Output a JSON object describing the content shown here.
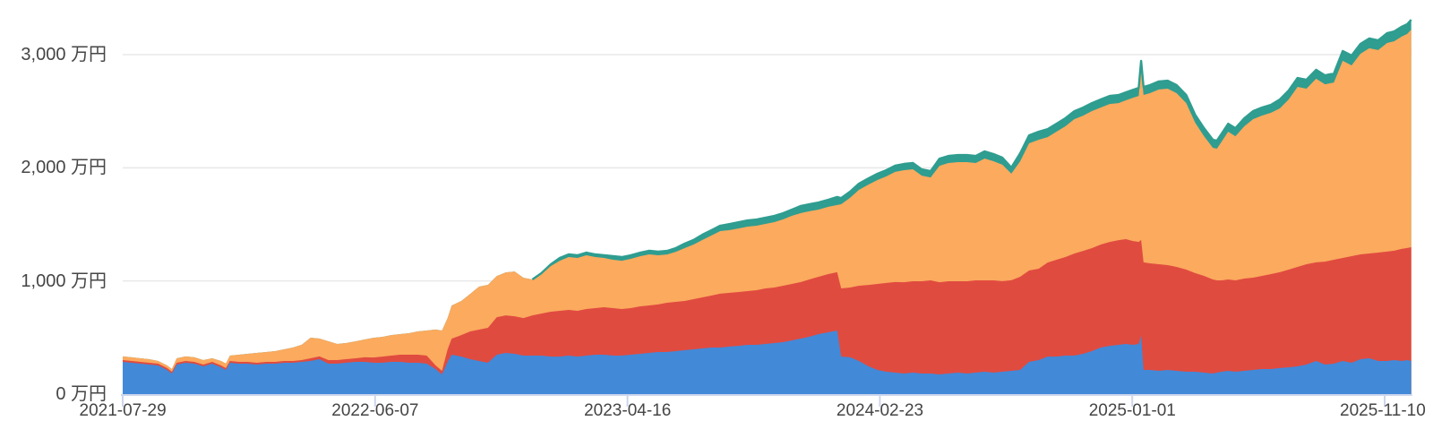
{
  "chart_data": {
    "type": "area",
    "stacked": true,
    "title": "",
    "unit": "万円",
    "x_axis": {
      "start_date": "2021-07-29",
      "ticks": [
        {
          "label": "2021-07-29",
          "day": 0
        },
        {
          "label": "2022-06-07",
          "day": 313
        },
        {
          "label": "2023-04-16",
          "day": 626
        },
        {
          "label": "2024-02-23",
          "day": 939
        },
        {
          "label": "2025-01-01",
          "day": 1252
        },
        {
          "label": "2025-11-10",
          "day": 1565
        }
      ],
      "end_day": 1598
    },
    "y_axis": {
      "ticks": [
        {
          "label": "0 万円",
          "value": 0
        },
        {
          "label": "1,000 万円",
          "value": 1000
        },
        {
          "label": "2,000 万円",
          "value": 2000
        },
        {
          "label": "3,000 万円",
          "value": 3000
        }
      ],
      "max_value": 3300,
      "grid": true
    },
    "legend": "none",
    "series_order_bottom_to_top": [
      "blue",
      "red",
      "orange",
      "teal"
    ],
    "days": [
      0,
      11,
      22,
      33,
      44,
      55,
      61,
      67,
      78,
      89,
      100,
      111,
      122,
      128,
      133,
      144,
      155,
      166,
      178,
      189,
      200,
      211,
      222,
      233,
      244,
      255,
      266,
      277,
      289,
      300,
      311,
      322,
      333,
      344,
      355,
      366,
      377,
      388,
      396,
      403,
      408,
      420,
      431,
      442,
      453,
      464,
      475,
      486,
      497,
      508,
      519,
      531,
      542,
      553,
      564,
      575,
      586,
      597,
      608,
      619,
      630,
      642,
      653,
      664,
      675,
      686,
      697,
      708,
      719,
      730,
      741,
      753,
      764,
      775,
      786,
      797,
      808,
      819,
      830,
      841,
      852,
      863,
      875,
      886,
      891,
      902,
      913,
      925,
      936,
      947,
      958,
      969,
      980,
      991,
      1002,
      1013,
      1024,
      1036,
      1047,
      1058,
      1069,
      1080,
      1091,
      1102,
      1113,
      1124,
      1136,
      1147,
      1158,
      1169,
      1180,
      1191,
      1202,
      1213,
      1224,
      1235,
      1244,
      1253,
      1260,
      1263,
      1266,
      1274,
      1285,
      1296,
      1307,
      1319,
      1330,
      1341,
      1352,
      1357,
      1363,
      1371,
      1380,
      1391,
      1402,
      1413,
      1424,
      1435,
      1446,
      1457,
      1468,
      1480,
      1491,
      1502,
      1513,
      1524,
      1535,
      1546,
      1557,
      1568,
      1577,
      1586,
      1593,
      1598
    ],
    "series": [
      {
        "name": "blue",
        "color": "#4289d8",
        "values": [
          285,
          277,
          269,
          261,
          253,
          214,
          182,
          261,
          277,
          269,
          245,
          269,
          237,
          214,
          277,
          269,
          269,
          261,
          269,
          269,
          277,
          277,
          285,
          293,
          309,
          269,
          269,
          277,
          285,
          285,
          277,
          277,
          285,
          285,
          277,
          277,
          269,
          222,
          174,
          285,
          348,
          332,
          309,
          293,
          277,
          348,
          364,
          356,
          340,
          340,
          340,
          332,
          332,
          340,
          332,
          340,
          348,
          348,
          340,
          340,
          348,
          356,
          364,
          372,
          372,
          380,
          388,
          396,
          404,
          412,
          412,
          420,
          427,
          435,
          435,
          443,
          451,
          459,
          475,
          491,
          507,
          530,
          546,
          562,
          332,
          325,
          293,
          245,
          214,
          198,
          190,
          182,
          190,
          182,
          182,
          174,
          182,
          190,
          182,
          190,
          198,
          190,
          198,
          206,
          214,
          285,
          301,
          332,
          332,
          340,
          340,
          356,
          380,
          412,
          427,
          435,
          443,
          435,
          443,
          515,
          214,
          214,
          206,
          214,
          206,
          198,
          198,
          190,
          182,
          190,
          198,
          206,
          198,
          206,
          214,
          222,
          222,
          230,
          237,
          245,
          261,
          293,
          261,
          269,
          293,
          277,
          309,
          317,
          293,
          293,
          301,
          293,
          301,
          293
        ]
      },
      {
        "name": "red",
        "color": "#e04b40",
        "values": [
          16,
          16,
          16,
          16,
          16,
          16,
          16,
          16,
          16,
          16,
          16,
          16,
          16,
          16,
          16,
          16,
          16,
          16,
          16,
          16,
          16,
          16,
          16,
          24,
          24,
          32,
          32,
          32,
          32,
          40,
          47,
          55,
          55,
          63,
          71,
          71,
          71,
          32,
          32,
          111,
          142,
          190,
          245,
          277,
          309,
          332,
          332,
          332,
          332,
          356,
          372,
          396,
          404,
          404,
          404,
          412,
          412,
          420,
          420,
          412,
          412,
          420,
          420,
          420,
          435,
          435,
          435,
          443,
          451,
          459,
          475,
          475,
          475,
          475,
          483,
          491,
          491,
          499,
          499,
          499,
          507,
          507,
          515,
          515,
          602,
          617,
          665,
          720,
          760,
          784,
          800,
          807,
          807,
          815,
          823,
          815,
          815,
          807,
          815,
          815,
          807,
          815,
          800,
          800,
          823,
          807,
          807,
          831,
          855,
          871,
          902,
          910,
          910,
          910,
          918,
          926,
          926,
          918,
          902,
          847,
          950,
          942,
          942,
          926,
          918,
          902,
          871,
          855,
          831,
          815,
          807,
          807,
          807,
          815,
          815,
          823,
          839,
          847,
          863,
          879,
          887,
          871,
          910,
          918,
          910,
          942,
          926,
          926,
          958,
          966,
          966,
          990,
          990,
          1005
        ]
      },
      {
        "name": "orange",
        "color": "#fbaa5e",
        "values": [
          32,
          32,
          32,
          32,
          24,
          24,
          24,
          40,
          40,
          40,
          40,
          32,
          40,
          40,
          47,
          63,
          71,
          87,
          87,
          95,
          103,
          119,
          135,
          182,
          158,
          166,
          142,
          142,
          150,
          158,
          174,
          174,
          182,
          182,
          190,
          206,
          222,
          317,
          356,
          277,
          293,
          301,
          332,
          380,
          380,
          364,
          380,
          396,
          356,
          317,
          348,
          404,
          443,
          467,
          467,
          475,
          451,
          435,
          427,
          427,
          435,
          443,
          451,
          435,
          427,
          443,
          467,
          483,
          507,
          530,
          554,
          554,
          562,
          570,
          570,
          570,
          578,
          586,
          602,
          610,
          602,
          594,
          594,
          594,
          744,
          792,
          847,
          887,
          918,
          942,
          974,
          990,
          990,
          934,
          910,
          1029,
          1045,
          1053,
          1053,
          1037,
          1077,
          1053,
          1029,
          942,
          1021,
          1124,
          1140,
          1108,
          1132,
          1156,
          1187,
          1195,
          1211,
          1211,
          1219,
          1211,
          1227,
          1266,
          1290,
          1504,
          1480,
          1504,
          1544,
          1559,
          1536,
          1472,
          1330,
          1235,
          1164,
          1164,
          1227,
          1306,
          1274,
          1346,
          1401,
          1417,
          1425,
          1448,
          1504,
          1591,
          1551,
          1623,
          1567,
          1567,
          1742,
          1686,
          1773,
          1813,
          1789,
          1844,
          1852,
          1876,
          1892,
          1924
        ]
      },
      {
        "name": "teal",
        "color": "#2f9d90",
        "values": [
          0,
          0,
          0,
          0,
          0,
          0,
          0,
          0,
          0,
          0,
          0,
          0,
          0,
          0,
          0,
          0,
          0,
          0,
          0,
          0,
          0,
          0,
          0,
          0,
          0,
          0,
          0,
          0,
          0,
          0,
          0,
          0,
          0,
          0,
          0,
          0,
          0,
          0,
          0,
          0,
          0,
          0,
          0,
          0,
          0,
          0,
          0,
          0,
          0,
          0,
          8,
          16,
          24,
          24,
          24,
          24,
          24,
          24,
          32,
          32,
          32,
          32,
          32,
          32,
          32,
          32,
          40,
          40,
          47,
          47,
          47,
          55,
          55,
          55,
          55,
          55,
          55,
          55,
          55,
          63,
          63,
          63,
          63,
          71,
          55,
          55,
          55,
          55,
          55,
          55,
          55,
          55,
          55,
          55,
          55,
          63,
          63,
          63,
          63,
          63,
          63,
          63,
          63,
          55,
          71,
          71,
          71,
          71,
          71,
          71,
          71,
          71,
          71,
          71,
          71,
          71,
          71,
          71,
          71,
          79,
          71,
          71,
          71,
          71,
          71,
          71,
          71,
          71,
          71,
          71,
          71,
          71,
          71,
          71,
          71,
          71,
          71,
          79,
          79,
          79,
          79,
          79,
          79,
          79,
          87,
          87,
          87,
          87,
          87,
          87,
          87,
          87,
          87,
          87
        ]
      }
    ],
    "colors": {
      "gridline": "#e8e8e8",
      "axis_line": "#ccd6ec",
      "tick_mark": "#ccd6ec",
      "label_text": "#454545",
      "background": "#ffffff"
    }
  }
}
